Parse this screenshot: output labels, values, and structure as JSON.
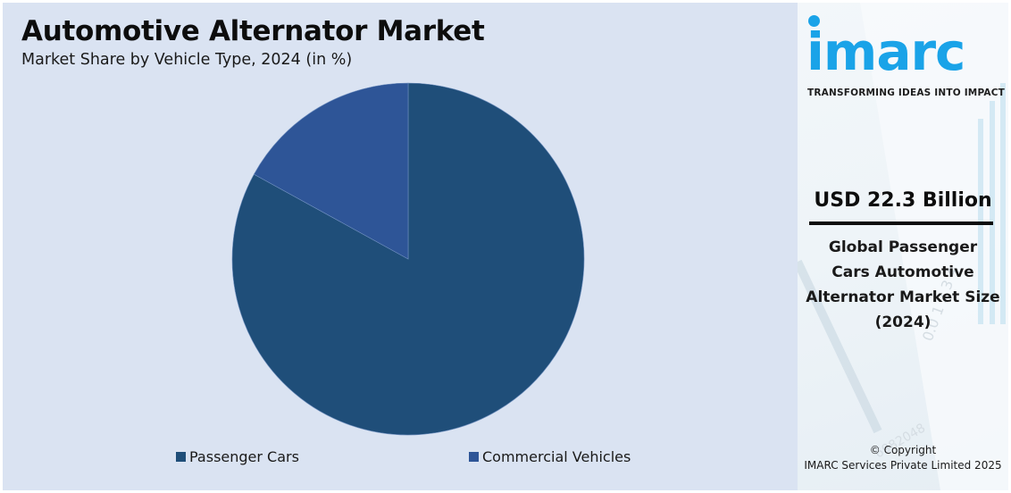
{
  "header": {
    "title": "Automotive Alternator Market",
    "subtitle": "Market Share by Vehicle Type, 2024 (in %)"
  },
  "legend": [
    {
      "label": "Passenger Cars",
      "color": "#1f4e79"
    },
    {
      "label": "Commercial Vehicles",
      "color": "#2e5597"
    }
  ],
  "sidebar": {
    "logo_text": "imarc",
    "tagline": "TRANSFORMING IDEAS INTO IMPACT",
    "stat_value": "USD 22.3 Billion",
    "stat_desc_lines": [
      "Global Passenger",
      "Cars Automotive",
      "Alternator Market Size",
      "(2024)"
    ],
    "copyright_line1": "© Copyright",
    "copyright_line2": "IMARC Services Private Limited 2025",
    "brand_color": "#1aa3e8"
  },
  "colors": {
    "background": "#dae3f2",
    "passenger_cars": "#1f4e79",
    "commercial_vehicles": "#2e5597"
  },
  "chart_data": {
    "type": "pie",
    "title": "Automotive Alternator Market",
    "subtitle": "Market Share by Vehicle Type, 2024 (in %)",
    "categories": [
      "Passenger Cars",
      "Commercial Vehicles"
    ],
    "values": [
      83,
      17
    ],
    "colors": [
      "#1f4e79",
      "#2e5597"
    ],
    "start_angle": "12 o'clock, clockwise from Passenger Cars",
    "legend_position": "bottom",
    "data_labels": false
  }
}
